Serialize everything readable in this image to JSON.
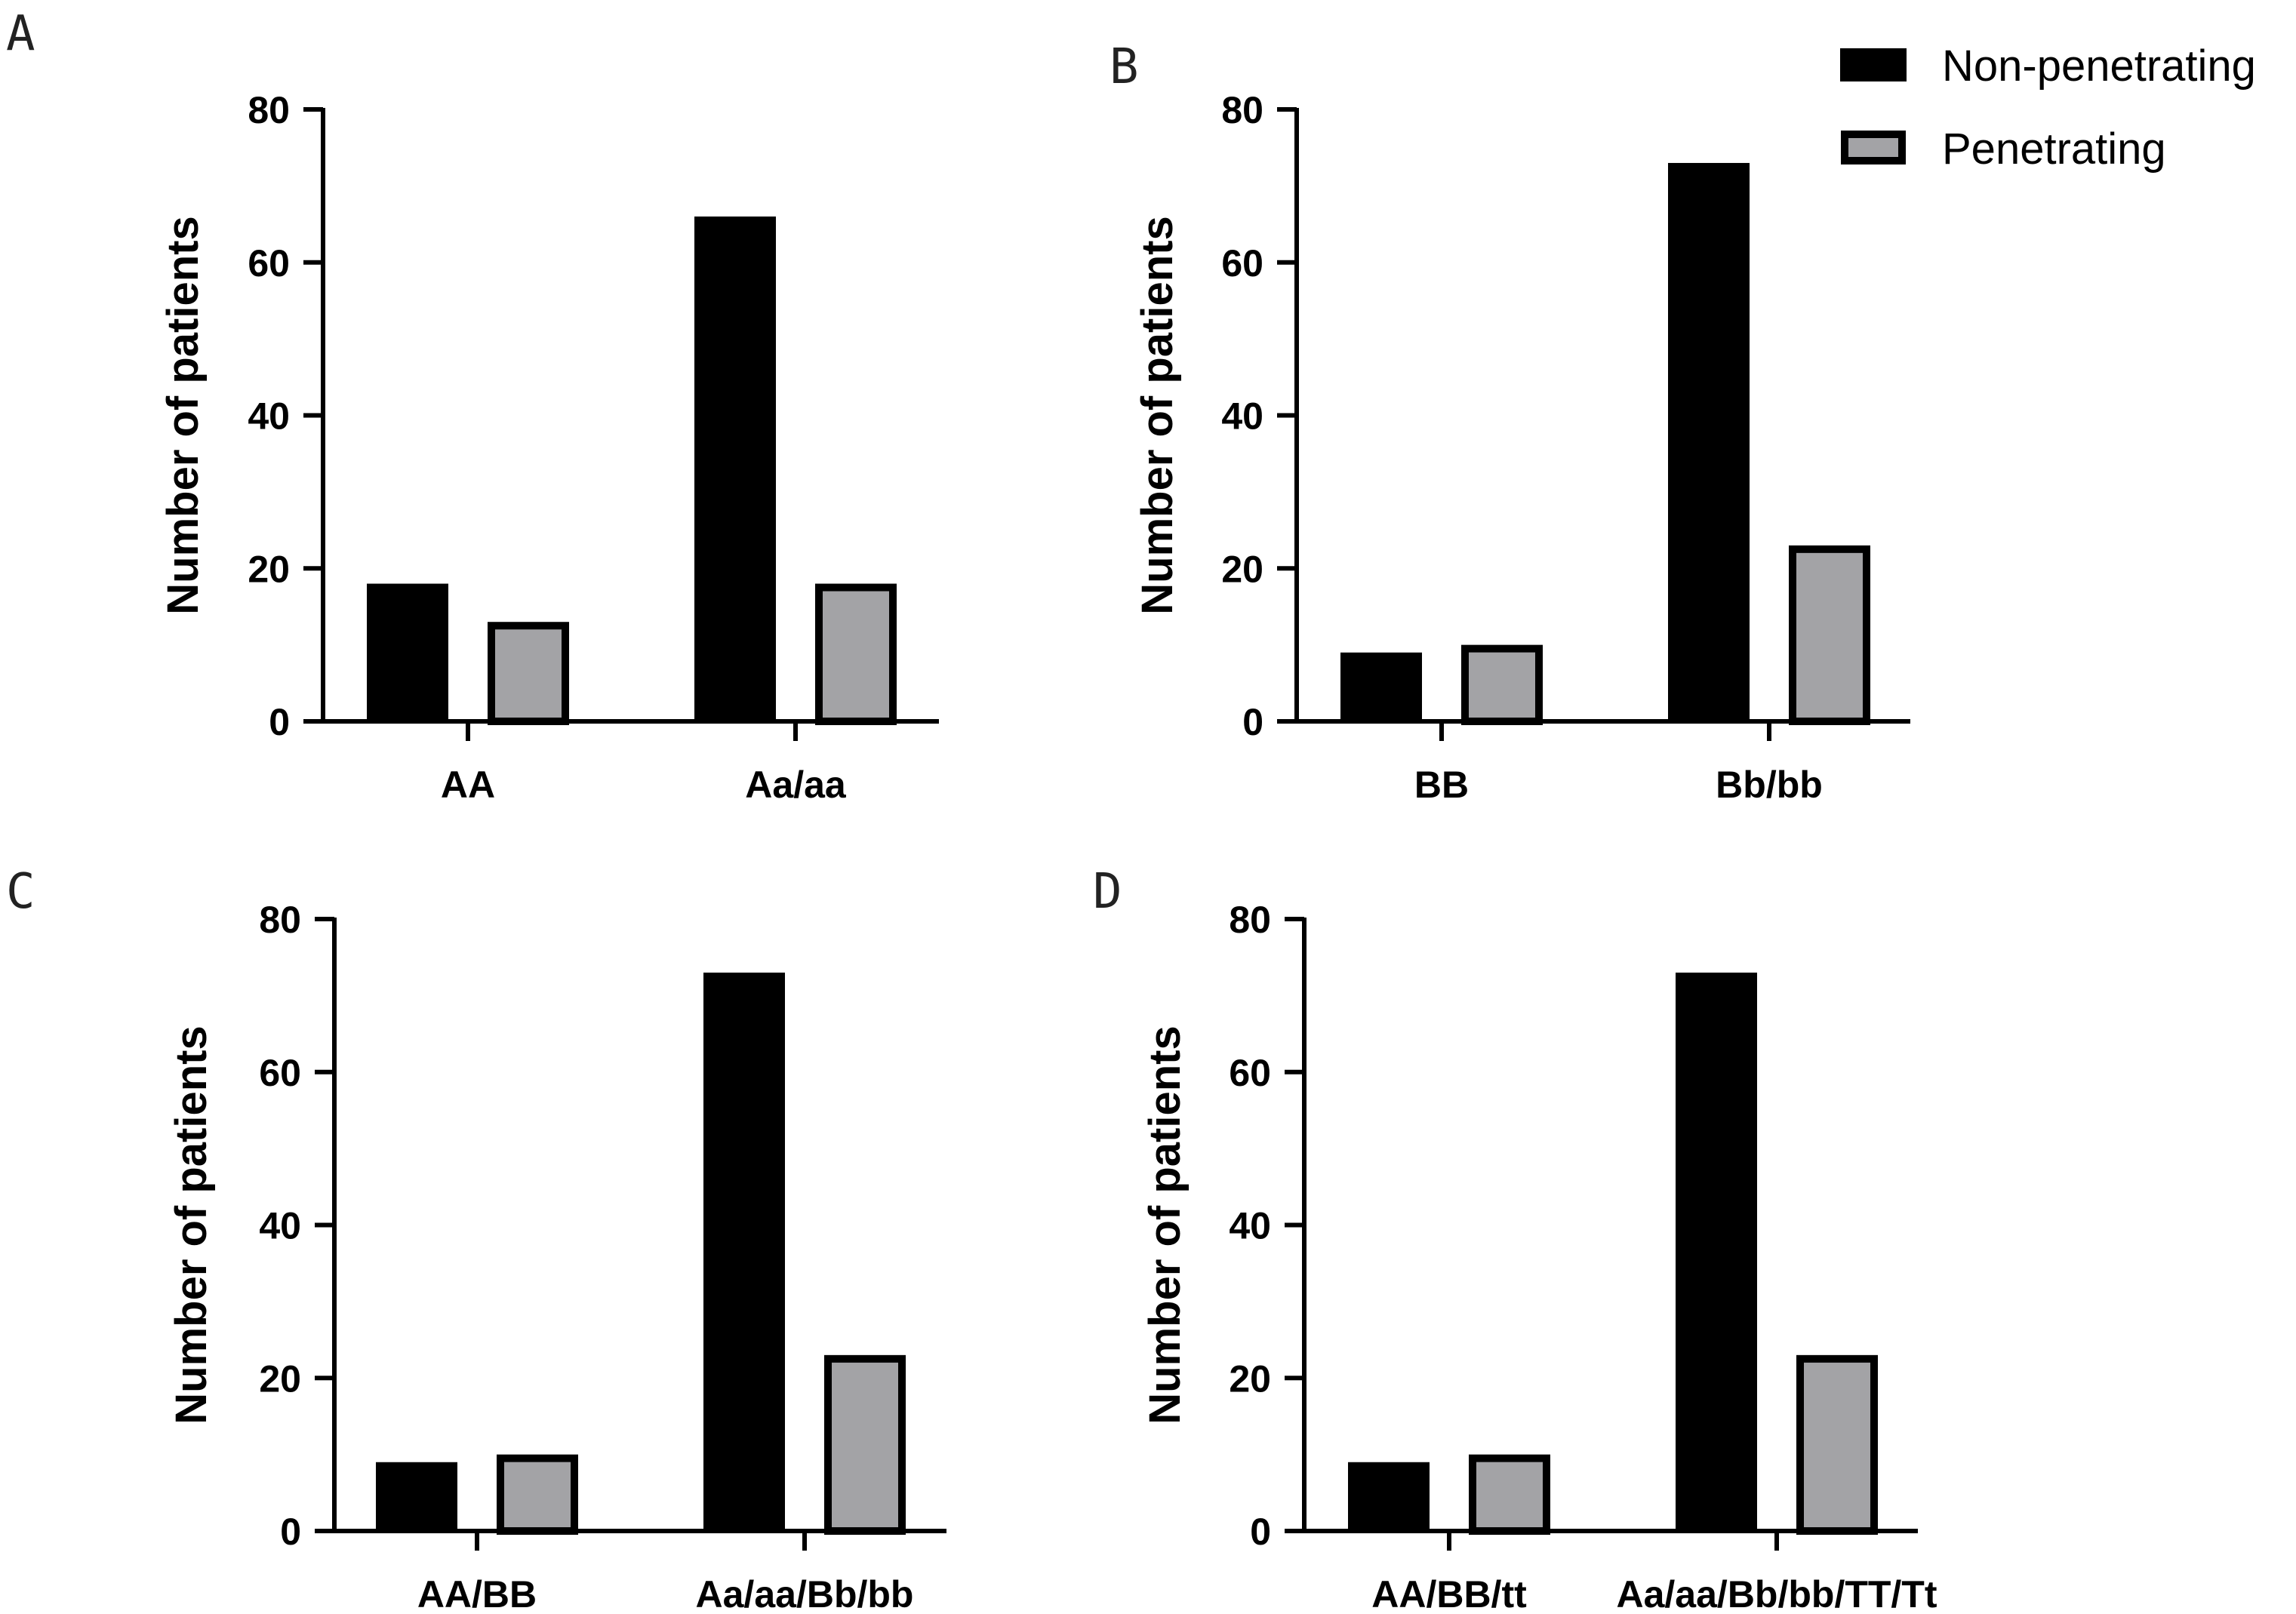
{
  "colors": {
    "non_penetrating": "#000000",
    "penetrating": "#a3a3a6",
    "penetrating_border": "#000000",
    "axis": "#000000"
  },
  "legend": {
    "non_penetrating": "Non-penetrating",
    "penetrating": "Penetrating"
  },
  "chart_data": [
    {
      "panel": "A",
      "type": "bar",
      "ylabel": "Number of patients",
      "xlabel": "",
      "ylim": [
        0,
        80
      ],
      "yticks": [
        0,
        20,
        40,
        60,
        80
      ],
      "categories": [
        "AA",
        "Aa/aa"
      ],
      "series": [
        {
          "name": "Non-penetrating",
          "values": [
            18,
            66
          ]
        },
        {
          "name": "Penetrating",
          "values": [
            13,
            18
          ]
        }
      ]
    },
    {
      "panel": "B",
      "type": "bar",
      "ylabel": "Number of patients",
      "xlabel": "",
      "ylim": [
        0,
        80
      ],
      "yticks": [
        0,
        20,
        40,
        60,
        80
      ],
      "categories": [
        "BB",
        "Bb/bb"
      ],
      "series": [
        {
          "name": "Non-penetrating",
          "values": [
            9,
            73
          ]
        },
        {
          "name": "Penetrating",
          "values": [
            10,
            23
          ]
        }
      ]
    },
    {
      "panel": "C",
      "type": "bar",
      "ylabel": "Number of patients",
      "xlabel": "",
      "ylim": [
        0,
        80
      ],
      "yticks": [
        0,
        20,
        40,
        60,
        80
      ],
      "categories": [
        "AA/BB",
        "Aa/aa/Bb/bb"
      ],
      "series": [
        {
          "name": "Non-penetrating",
          "values": [
            9,
            73
          ]
        },
        {
          "name": "Penetrating",
          "values": [
            10,
            23
          ]
        }
      ]
    },
    {
      "panel": "D",
      "type": "bar",
      "ylabel": "Number of patients",
      "xlabel": "",
      "ylim": [
        0,
        80
      ],
      "yticks": [
        0,
        20,
        40,
        60,
        80
      ],
      "categories": [
        "AA/BB/tt",
        "Aa/aa/Bb/bb/TT/Tt"
      ],
      "series": [
        {
          "name": "Non-penetrating",
          "values": [
            9,
            73
          ]
        },
        {
          "name": "Penetrating",
          "values": [
            10,
            23
          ]
        }
      ]
    }
  ]
}
